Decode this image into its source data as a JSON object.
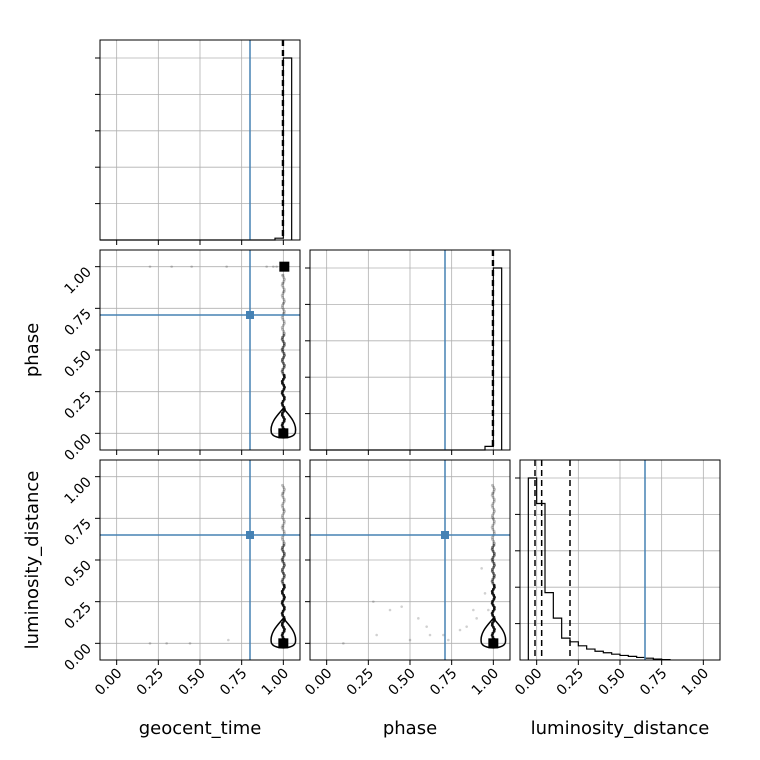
{
  "chart_data": {
    "type": "corner",
    "parameters": [
      "geocent_time",
      "phase",
      "luminosity_distance"
    ],
    "axis_labels": {
      "geocent_time": "geocent_time",
      "phase": "phase",
      "luminosity_distance": "luminosity_distance"
    },
    "tick_values": [
      0.0,
      0.25,
      0.5,
      0.75,
      1.0
    ],
    "tick_labels": [
      "0.00",
      "0.25",
      "0.50",
      "0.75",
      "1.00"
    ],
    "axis_range": [
      -0.1,
      1.1
    ],
    "grid": true,
    "truth_color": "#4682b4",
    "truths": {
      "geocent_time": 0.8,
      "phase": 0.71,
      "luminosity_distance": 0.65
    },
    "quantiles": {
      "geocent_time": [
        0.995,
        1.0,
        1.0
      ],
      "phase": [
        0.995,
        1.0,
        1.0
      ],
      "luminosity_distance": [
        -0.01,
        0.03,
        0.2
      ]
    },
    "histograms": {
      "geocent_time": {
        "bin_edges": [
          -0.1,
          -0.05,
          0.0,
          0.05,
          0.1,
          0.15,
          0.2,
          0.25,
          0.3,
          0.35,
          0.4,
          0.45,
          0.5,
          0.55,
          0.6,
          0.65,
          0.7,
          0.75,
          0.8,
          0.85,
          0.9,
          0.95,
          1.0,
          1.05
        ],
        "counts": [
          0,
          0,
          0,
          0,
          0,
          0,
          0,
          0,
          0,
          0,
          0,
          0,
          0,
          0,
          0,
          0,
          0,
          0,
          0,
          0,
          0,
          0.01,
          1.0
        ]
      },
      "phase": {
        "bin_edges": [
          -0.1,
          -0.05,
          0.0,
          0.05,
          0.1,
          0.15,
          0.2,
          0.25,
          0.3,
          0.35,
          0.4,
          0.45,
          0.5,
          0.55,
          0.6,
          0.65,
          0.7,
          0.75,
          0.8,
          0.85,
          0.9,
          0.95,
          1.0,
          1.05
        ],
        "counts": [
          0,
          0,
          0,
          0,
          0,
          0,
          0,
          0,
          0,
          0,
          0,
          0,
          0,
          0,
          0,
          0,
          0,
          0,
          0,
          0,
          0,
          0.02,
          1.0
        ]
      },
      "luminosity_distance": {
        "bin_edges": [
          -0.05,
          0.0,
          0.05,
          0.1,
          0.15,
          0.2,
          0.25,
          0.3,
          0.35,
          0.4,
          0.45,
          0.5,
          0.55,
          0.6,
          0.65,
          0.7,
          0.75,
          0.8
        ],
        "counts": [
          1.0,
          0.86,
          0.37,
          0.23,
          0.12,
          0.1,
          0.078,
          0.06,
          0.048,
          0.04,
          0.032,
          0.025,
          0.02,
          0.014,
          0.01,
          0.005,
          0.002
        ]
      }
    },
    "scatter": {
      "phase_vs_geocent_time": [
        [
          0.2,
          1.0
        ],
        [
          0.33,
          1.0
        ],
        [
          0.45,
          1.0
        ],
        [
          0.66,
          1.0
        ],
        [
          0.9,
          1.0
        ],
        [
          0.94,
          1.0
        ],
        [
          0.96,
          1.0
        ],
        [
          1.0,
          0.95
        ],
        [
          1.0,
          0.9
        ],
        [
          1.0,
          0.85
        ],
        [
          1.0,
          0.78
        ],
        [
          1.0,
          0.72
        ],
        [
          1.0,
          0.6
        ],
        [
          1.0,
          0.5
        ],
        [
          1.0,
          0.45
        ],
        [
          1.0,
          0.35
        ],
        [
          1.0,
          0.3
        ],
        [
          1.0,
          0.15
        ]
      ],
      "luminosity_distance_vs_geocent_time": [
        [
          0.2,
          0.0
        ],
        [
          0.3,
          0.0
        ],
        [
          0.44,
          0.0
        ],
        [
          0.67,
          0.02
        ],
        [
          1.0,
          0.9
        ],
        [
          1.0,
          0.8
        ],
        [
          1.0,
          0.7
        ],
        [
          1.0,
          0.6
        ],
        [
          1.0,
          0.5
        ],
        [
          1.0,
          0.42
        ],
        [
          1.0,
          0.35
        ],
        [
          1.0,
          0.28
        ],
        [
          1.0,
          0.2
        ],
        [
          1.0,
          0.1
        ]
      ],
      "luminosity_distance_vs_phase": [
        [
          0.28,
          0.25
        ],
        [
          0.38,
          0.2
        ],
        [
          0.45,
          0.22
        ],
        [
          0.55,
          0.15
        ],
        [
          0.6,
          0.1
        ],
        [
          0.62,
          0.05
        ],
        [
          0.7,
          0.05
        ],
        [
          0.73,
          0.02
        ],
        [
          0.8,
          0.08
        ],
        [
          0.84,
          0.1
        ],
        [
          0.88,
          0.2
        ],
        [
          0.9,
          0.15
        ],
        [
          0.93,
          0.45
        ],
        [
          0.95,
          0.3
        ],
        [
          0.97,
          0.2
        ],
        [
          1.0,
          0.9
        ],
        [
          1.0,
          0.75
        ],
        [
          1.0,
          0.6
        ],
        [
          1.0,
          0.5
        ],
        [
          1.0,
          0.4
        ],
        [
          1.0,
          0.3
        ],
        [
          0.5,
          0.02
        ],
        [
          0.3,
          0.05
        ],
        [
          0.1,
          0.0
        ]
      ]
    }
  }
}
